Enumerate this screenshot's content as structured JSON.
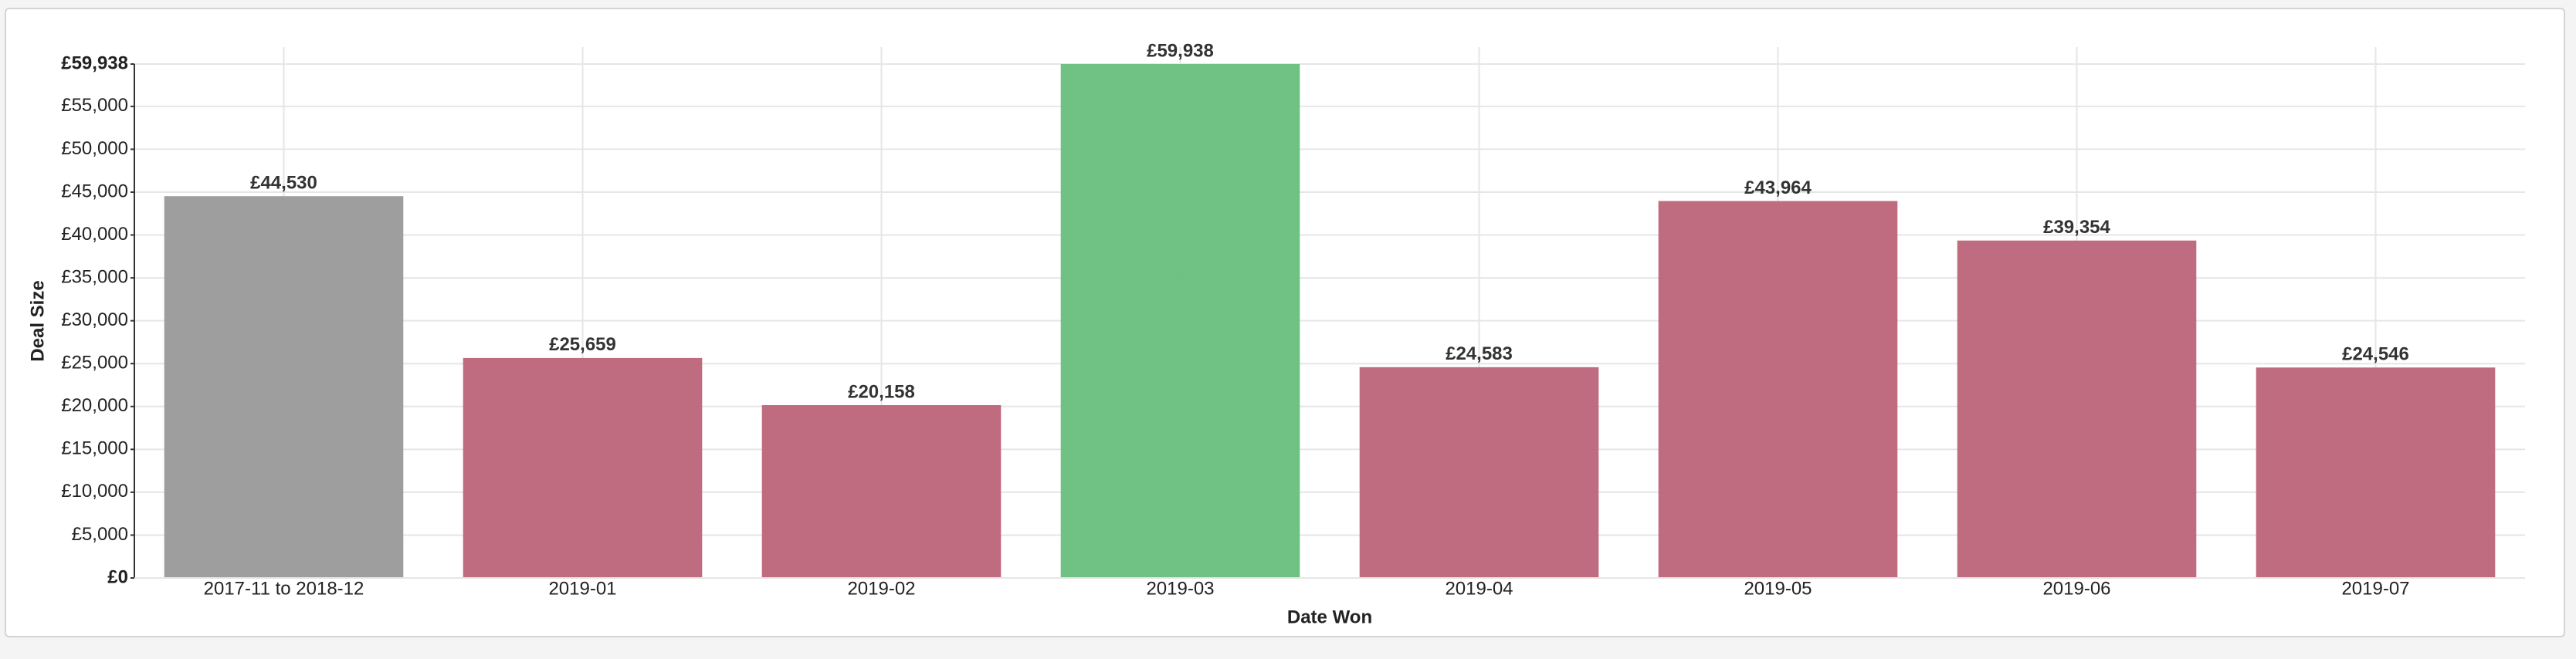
{
  "chart_data": {
    "type": "bar",
    "x_label": "Date Won",
    "y_label": "Deal Size",
    "categories": [
      "2017-11 to 2018-12",
      "2019-01",
      "2019-02",
      "2019-03",
      "2019-04",
      "2019-05",
      "2019-06",
      "2019-07"
    ],
    "values": [
      44530,
      25659,
      20158,
      59938,
      24583,
      43964,
      39354,
      24546
    ],
    "value_labels": [
      "£44,530",
      "£25,659",
      "£20,158",
      "£59,938",
      "£24,583",
      "£43,964",
      "£39,354",
      "£24,546"
    ],
    "colors": [
      "#999999",
      "#bd6479",
      "#bd6479",
      "#67bf7c",
      "#bd6479",
      "#bd6479",
      "#bd6479",
      "#bd6479"
    ],
    "ylim": [
      0,
      59938
    ],
    "yticks": [
      {
        "value": 0,
        "label": "£0"
      },
      {
        "value": 5000,
        "label": "£5,000"
      },
      {
        "value": 10000,
        "label": "£10,000"
      },
      {
        "value": 15000,
        "label": "£15,000"
      },
      {
        "value": 20000,
        "label": "£20,000"
      },
      {
        "value": 25000,
        "label": "£25,000"
      },
      {
        "value": 30000,
        "label": "£30,000"
      },
      {
        "value": 35000,
        "label": "£35,000"
      },
      {
        "value": 40000,
        "label": "£40,000"
      },
      {
        "value": 45000,
        "label": "£45,000"
      },
      {
        "value": 50000,
        "label": "£50,000"
      },
      {
        "value": 55000,
        "label": "£55,000"
      },
      {
        "value": 59938,
        "label": "£59,938"
      }
    ],
    "grid": true
  }
}
